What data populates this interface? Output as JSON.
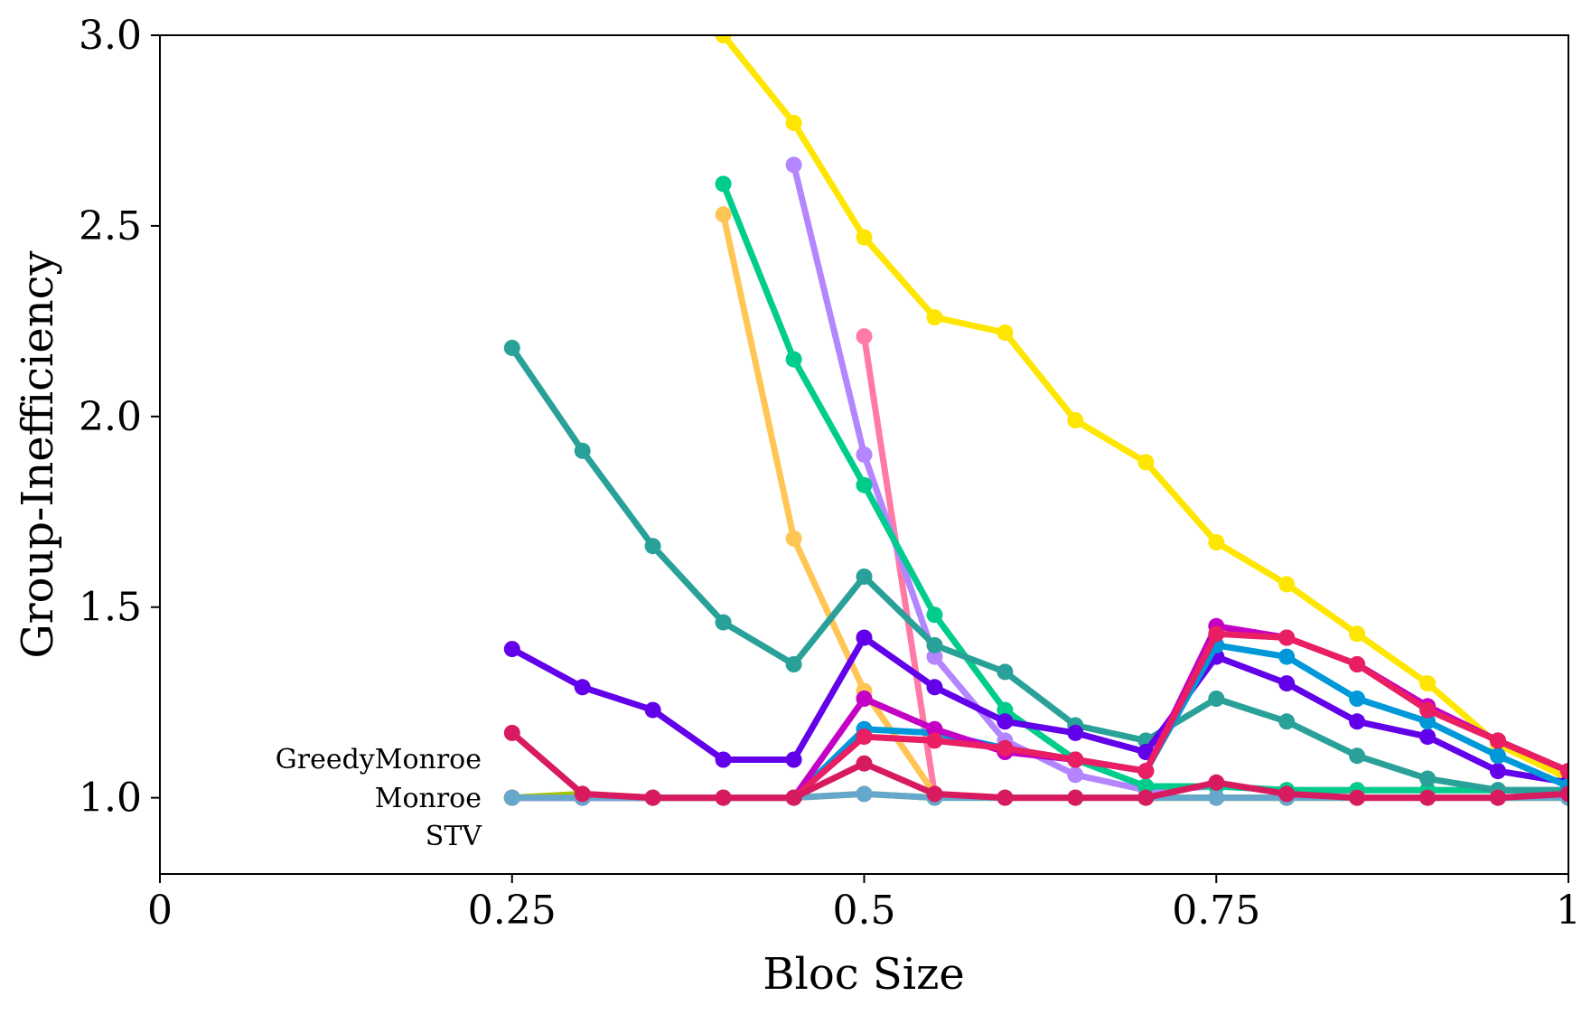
{
  "chart_data": {
    "type": "line",
    "xlabel": "Bloc Size",
    "ylabel": "Group-Inefficiency",
    "xlim": [
      0,
      1
    ],
    "ylim": [
      0.8,
      3.0
    ],
    "xticks": [
      0,
      0.25,
      0.5,
      0.75,
      1
    ],
    "xtick_labels": [
      "0",
      "0.25",
      "0.5",
      "0.75",
      "1"
    ],
    "yticks": [
      1.0,
      1.5,
      2.0,
      2.5,
      3.0
    ],
    "ytick_labels": [
      "1.0",
      "1.5",
      "2.0",
      "2.5",
      "3.0"
    ],
    "grid": false,
    "annotations": [
      "GreedyMonroe",
      "Monroe",
      "STV"
    ],
    "x": [
      0.25,
      0.3,
      0.35,
      0.4,
      0.45,
      0.5,
      0.55,
      0.6,
      0.65,
      0.7,
      0.75,
      0.8,
      0.85,
      0.9,
      0.95,
      1.0
    ],
    "series": [
      {
        "color": "#FFE600",
        "values": [
          null,
          null,
          null,
          3.0,
          2.77,
          2.47,
          2.26,
          2.22,
          1.99,
          1.88,
          1.67,
          1.56,
          1.43,
          1.3,
          1.14,
          1.05
        ]
      },
      {
        "color": "#FF7BA6",
        "values": [
          null,
          null,
          null,
          null,
          null,
          2.21,
          1.01,
          1.0,
          1.0,
          1.0,
          1.0,
          1.0,
          1.0,
          1.0,
          1.0,
          1.0
        ]
      },
      {
        "color": "#B385FF",
        "values": [
          null,
          null,
          null,
          null,
          2.66,
          1.9,
          1.37,
          1.15,
          1.06,
          1.02,
          1.03,
          1.02,
          1.02,
          1.02,
          1.02,
          1.02
        ]
      },
      {
        "color": "#00CC8C",
        "values": [
          null,
          null,
          null,
          2.61,
          2.15,
          1.82,
          1.48,
          1.23,
          1.1,
          1.03,
          1.03,
          1.02,
          1.02,
          1.02,
          1.02,
          1.02
        ]
      },
      {
        "color": "#FFC555",
        "values": [
          null,
          null,
          null,
          2.53,
          1.68,
          1.28,
          1.01,
          1.0,
          1.0,
          1.0,
          1.0,
          1.0,
          1.0,
          1.0,
          1.0,
          1.0
        ]
      },
      {
        "color": "#2AA198",
        "values": [
          2.18,
          1.91,
          1.66,
          1.46,
          1.35,
          1.58,
          1.4,
          1.33,
          1.19,
          1.15,
          1.26,
          1.2,
          1.11,
          1.05,
          1.02,
          1.02
        ]
      },
      {
        "color": "#6200EA",
        "values": [
          1.39,
          1.29,
          1.23,
          1.1,
          1.1,
          1.42,
          1.29,
          1.2,
          1.17,
          1.12,
          1.37,
          1.3,
          1.2,
          1.16,
          1.07,
          1.04
        ]
      },
      {
        "color": "#0098D8",
        "values": [
          1.0,
          1.0,
          1.0,
          1.0,
          1.0,
          1.18,
          1.17,
          1.13,
          1.1,
          1.07,
          1.4,
          1.37,
          1.26,
          1.2,
          1.11,
          1.03
        ]
      },
      {
        "color": "#C400C4",
        "values": [
          1.0,
          1.0,
          1.0,
          1.0,
          1.0,
          1.26,
          1.18,
          1.12,
          1.1,
          1.07,
          1.45,
          1.42,
          1.35,
          1.24,
          1.15,
          1.07
        ]
      },
      {
        "color": "#E91E63",
        "values": [
          1.0,
          1.0,
          1.0,
          1.0,
          1.0,
          1.16,
          1.15,
          1.13,
          1.1,
          1.07,
          1.43,
          1.42,
          1.35,
          1.23,
          1.15,
          1.07
        ]
      },
      {
        "color": "#A4C400",
        "values": [
          1.0,
          1.01,
          1.0,
          1.0,
          1.0,
          1.01,
          1.0,
          1.0,
          1.0,
          1.0,
          1.0,
          1.0,
          1.0,
          1.0,
          1.0,
          1.0
        ]
      },
      {
        "color": "#66A8CC",
        "values": [
          1.0,
          1.0,
          1.0,
          1.0,
          1.0,
          1.01,
          1.0,
          1.0,
          1.0,
          1.0,
          1.0,
          1.0,
          1.0,
          1.0,
          1.0,
          1.0
        ]
      },
      {
        "color": "#D81B60",
        "values": [
          1.17,
          1.01,
          1.0,
          1.0,
          1.0,
          1.09,
          1.01,
          1.0,
          1.0,
          1.0,
          1.04,
          1.01,
          1.0,
          1.0,
          1.0,
          1.01
        ]
      }
    ]
  }
}
